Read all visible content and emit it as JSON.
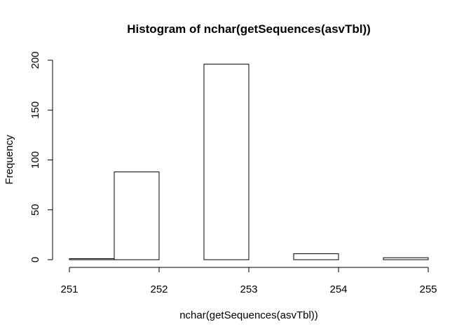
{
  "chart_data": {
    "type": "bar",
    "title": "Histogram of nchar(getSequences(asvTbl))",
    "xlabel": "nchar(getSequences(asvTbl))",
    "ylabel": "Frequency",
    "xlim": [
      251,
      255
    ],
    "ylim": [
      0,
      200
    ],
    "x_ticks": [
      "251",
      "252",
      "253",
      "254",
      "255"
    ],
    "y_ticks": [
      "0",
      "50",
      "100",
      "150",
      "200"
    ],
    "grid": false,
    "bins": [
      {
        "start": 251.0,
        "end": 251.5,
        "value": 1
      },
      {
        "start": 251.5,
        "end": 252.0,
        "value": 88
      },
      {
        "start": 252.0,
        "end": 252.5,
        "value": 0
      },
      {
        "start": 252.5,
        "end": 253.0,
        "value": 196
      },
      {
        "start": 253.0,
        "end": 253.5,
        "value": 0
      },
      {
        "start": 253.5,
        "end": 254.0,
        "value": 6
      },
      {
        "start": 254.0,
        "end": 254.5,
        "value": 0
      },
      {
        "start": 254.5,
        "end": 255.0,
        "value": 2
      }
    ]
  }
}
